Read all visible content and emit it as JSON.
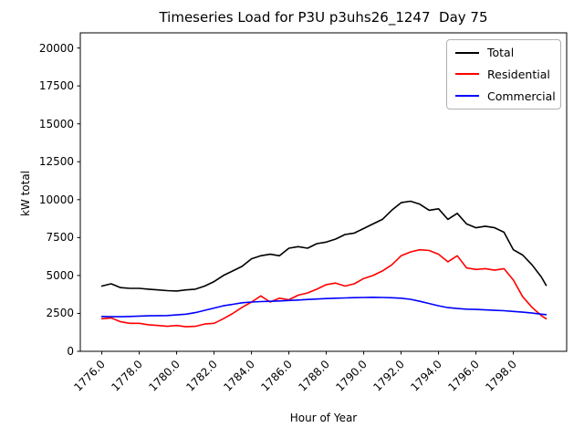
{
  "chart_data": {
    "type": "line",
    "title": "Timeseries Load for P3U p3uhs26_1247  Day 75",
    "xlabel": "Hour of Year",
    "ylabel": "kW total",
    "xlim": [
      1774.85,
      1800.85
    ],
    "ylim": [
      0,
      21000
    ],
    "grid": false,
    "legend_position": "upper right",
    "xticks": [
      1776.0,
      1778.0,
      1780.0,
      1782.0,
      1784.0,
      1786.0,
      1788.0,
      1790.0,
      1792.0,
      1794.0,
      1796.0,
      1798.0
    ],
    "xtick_labels": [
      "1776.0",
      "1778.0",
      "1780.0",
      "1782.0",
      "1784.0",
      "1786.0",
      "1788.0",
      "1790.0",
      "1792.0",
      "1794.0",
      "1796.0",
      "1798.0"
    ],
    "yticks": [
      0,
      2500,
      5000,
      7500,
      10000,
      12500,
      15000,
      17500,
      20000
    ],
    "ytick_labels": [
      "0",
      "2500",
      "5000",
      "7500",
      "10000",
      "12500",
      "15000",
      "17500",
      "20000"
    ],
    "x": [
      1776.0,
      1776.5,
      1777.0,
      1777.5,
      1778.0,
      1778.5,
      1779.0,
      1779.5,
      1780.0,
      1780.5,
      1781.0,
      1781.5,
      1782.0,
      1782.5,
      1783.0,
      1783.5,
      1784.0,
      1784.5,
      1785.0,
      1785.5,
      1786.0,
      1786.5,
      1787.0,
      1787.5,
      1788.0,
      1788.5,
      1789.0,
      1789.5,
      1790.0,
      1790.5,
      1791.0,
      1791.5,
      1792.0,
      1792.5,
      1793.0,
      1793.5,
      1794.0,
      1794.5,
      1795.0,
      1795.5,
      1796.0,
      1796.5,
      1797.0,
      1797.5,
      1798.0,
      1798.5,
      1799.0,
      1799.5,
      1799.75
    ],
    "series": [
      {
        "name": "Total",
        "color": "#000000",
        "values": [
          4300,
          4450,
          4200,
          4150,
          4150,
          4100,
          4050,
          4000,
          3980,
          4050,
          4100,
          4300,
          4600,
          5000,
          5300,
          5600,
          6100,
          6300,
          6400,
          6300,
          6800,
          6900,
          6800,
          7100,
          7200,
          7400,
          7700,
          7800,
          8100,
          8400,
          8700,
          9300,
          9800,
          9900,
          9700,
          9300,
          9400,
          8700,
          9100,
          8400,
          8150,
          8250,
          8150,
          7850,
          6700,
          6350,
          5700,
          4900,
          4350
        ]
      },
      {
        "name": "Residential",
        "color": "#ff0000",
        "values": [
          2150,
          2200,
          1950,
          1850,
          1850,
          1750,
          1700,
          1650,
          1700,
          1620,
          1650,
          1800,
          1850,
          2150,
          2500,
          2900,
          3250,
          3650,
          3250,
          3500,
          3400,
          3700,
          3850,
          4100,
          4400,
          4500,
          4300,
          4450,
          4800,
          5000,
          5300,
          5700,
          6300,
          6550,
          6700,
          6650,
          6400,
          5900,
          6300,
          5500,
          5400,
          5450,
          5350,
          5450,
          4700,
          3600,
          2900,
          2350,
          2150
        ]
      },
      {
        "name": "Commercial",
        "color": "#0000ff",
        "values": [
          2300,
          2280,
          2280,
          2300,
          2320,
          2340,
          2350,
          2360,
          2400,
          2450,
          2550,
          2700,
          2850,
          3000,
          3100,
          3200,
          3250,
          3280,
          3300,
          3320,
          3350,
          3380,
          3420,
          3450,
          3480,
          3500,
          3520,
          3540,
          3550,
          3560,
          3550,
          3530,
          3500,
          3430,
          3300,
          3150,
          3000,
          2880,
          2820,
          2780,
          2760,
          2730,
          2700,
          2680,
          2630,
          2580,
          2520,
          2450,
          2420
        ]
      }
    ]
  }
}
